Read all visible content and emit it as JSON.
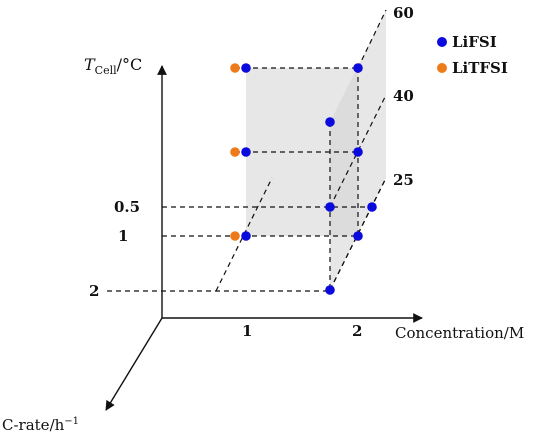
{
  "axes": {
    "temperature": {
      "label_main": "T",
      "label_sub": "Cell",
      "label_unit": "/°C"
    },
    "concentration": {
      "label": "Concentration/M"
    },
    "c_rate": {
      "label_main": "C-rate/h",
      "label_exp": "−1"
    }
  },
  "concentration_ticks": [
    "1",
    "2"
  ],
  "c_rate_ticks": [
    "0.5",
    "1",
    "2"
  ],
  "temperature_ticks": [
    "25",
    "40",
    "60"
  ],
  "legend": [
    {
      "name": "LiFSI",
      "color": "#0a0adc"
    },
    {
      "name": "LiTFSI",
      "color": "#ee7b1a"
    }
  ],
  "colors": {
    "plane_fill": "#d3d3d3",
    "axis": "#111111"
  },
  "chart_data": {
    "type": "scatter",
    "dimensions": [
      "concentration",
      "temperature",
      "c_rate"
    ],
    "series": [
      {
        "name": "LiFSI",
        "points": [
          {
            "concentration": 1,
            "temperature": 25,
            "c_rate": 1
          },
          {
            "concentration": 1,
            "temperature": 40,
            "c_rate": 1
          },
          {
            "concentration": 1,
            "temperature": 60,
            "c_rate": 1
          },
          {
            "concentration": 2,
            "temperature": 25,
            "c_rate": 1
          },
          {
            "concentration": 2,
            "temperature": 40,
            "c_rate": 1
          },
          {
            "concentration": 2,
            "temperature": 60,
            "c_rate": 1
          },
          {
            "concentration": 2,
            "temperature": 25,
            "c_rate": 2
          },
          {
            "concentration": 2,
            "temperature": 40,
            "c_rate": 2
          },
          {
            "concentration": 2,
            "temperature": 25,
            "c_rate": 0.5
          }
        ]
      },
      {
        "name": "LiTFSI",
        "points": [
          {
            "concentration": 1,
            "temperature": 25,
            "c_rate": 1
          },
          {
            "concentration": 1,
            "temperature": 40,
            "c_rate": 1
          },
          {
            "concentration": 1,
            "temperature": 60,
            "c_rate": 1
          }
        ]
      }
    ]
  }
}
